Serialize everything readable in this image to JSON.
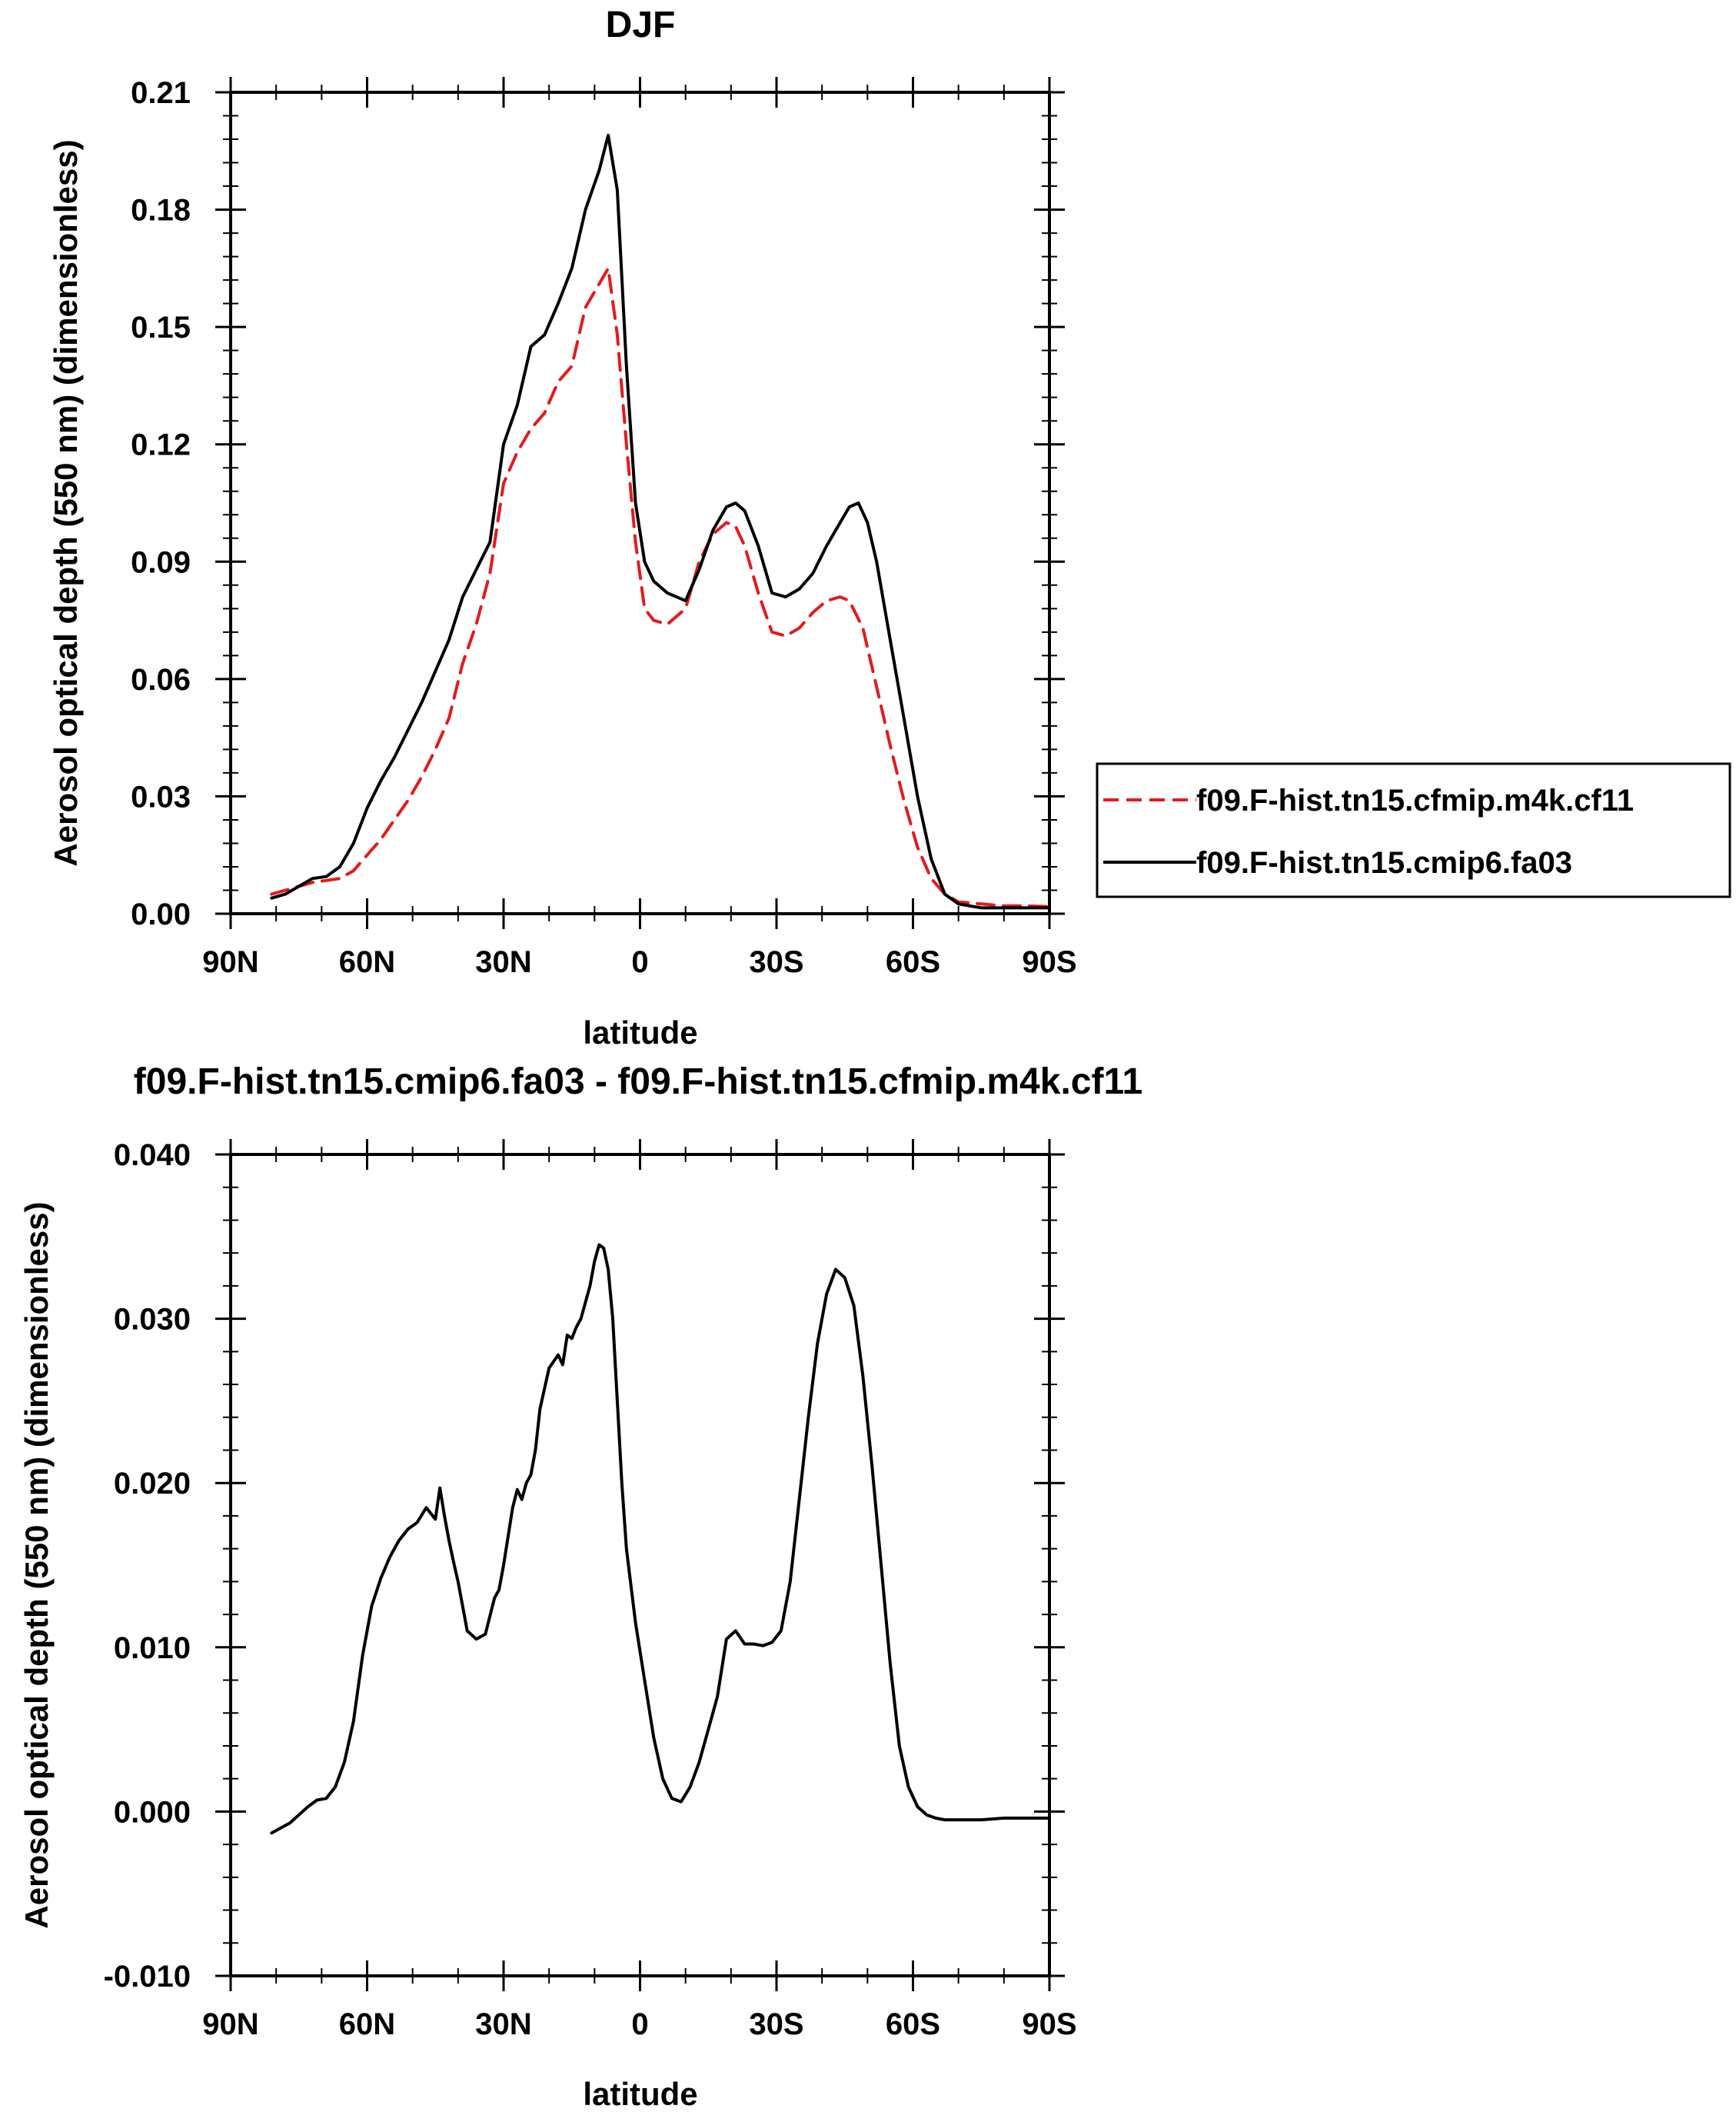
{
  "chart_data": [
    {
      "type": "line",
      "title": "DJF",
      "xlabel": "latitude",
      "ylabel": "Aerosol optical depth (550 nm) (dimensionless)",
      "xlim": [
        90,
        -90
      ],
      "ylim": [
        0,
        0.21
      ],
      "xticks": [
        90,
        60,
        30,
        0,
        -30,
        -60,
        -90
      ],
      "xtick_labels": [
        "90N",
        "60N",
        "30N",
        "0",
        "30S",
        "60S",
        "90S"
      ],
      "yticks": [
        0,
        0.03,
        0.06,
        0.09,
        0.12,
        0.15,
        0.18,
        0.21
      ],
      "ytick_labels": [
        "0.00",
        "0.03",
        "0.06",
        "0.09",
        "0.12",
        "0.15",
        "0.18",
        "0.21"
      ],
      "grid": false,
      "legend_position": "right-outside",
      "series": [
        {
          "name": "f09.F-hist.tn15.cfmip.m4k.cf11",
          "color": "#e41a1c",
          "dash": "dashed",
          "x": [
            81,
            78,
            75,
            72,
            69,
            66,
            63,
            60,
            57,
            54,
            51,
            48,
            45,
            42,
            39,
            36,
            33,
            30,
            27,
            24,
            21,
            18,
            15,
            12,
            9,
            7,
            5,
            3,
            1,
            -1,
            -3,
            -6,
            -10,
            -13,
            -16,
            -19,
            -21,
            -23,
            -26,
            -29,
            -32,
            -35,
            -38,
            -41,
            -44,
            -46,
            -49,
            -52,
            -55,
            -58,
            -61,
            -64,
            -67,
            -70,
            -75,
            -80,
            -85,
            -90
          ],
          "y": [
            0.005,
            0.006,
            0.007,
            0.008,
            0.0085,
            0.009,
            0.011,
            0.015,
            0.019,
            0.024,
            0.029,
            0.035,
            0.042,
            0.05,
            0.064,
            0.074,
            0.087,
            0.11,
            0.118,
            0.124,
            0.128,
            0.136,
            0.14,
            0.155,
            0.161,
            0.165,
            0.148,
            0.12,
            0.095,
            0.078,
            0.075,
            0.074,
            0.078,
            0.09,
            0.097,
            0.1,
            0.099,
            0.094,
            0.082,
            0.072,
            0.071,
            0.073,
            0.077,
            0.08,
            0.081,
            0.08,
            0.073,
            0.058,
            0.043,
            0.029,
            0.017,
            0.009,
            0.005,
            0.003,
            0.0025,
            0.002,
            0.002,
            0.0018
          ]
        },
        {
          "name": "f09.F-hist.tn15.cmip6.fa03",
          "color": "#000000",
          "dash": "solid",
          "x": [
            81,
            78,
            75,
            72,
            69,
            66,
            63,
            60,
            57,
            54,
            51,
            48,
            45,
            42,
            39,
            36,
            33,
            30,
            27,
            24,
            21,
            18,
            15,
            12,
            9,
            7,
            5,
            3,
            1,
            -1,
            -3,
            -6,
            -10,
            -13,
            -16,
            -19,
            -21,
            -23,
            -26,
            -29,
            -32,
            -35,
            -38,
            -41,
            -44,
            -46,
            -48,
            -50,
            -52,
            -55,
            -58,
            -61,
            -64,
            -67,
            -70,
            -75,
            -80,
            -85,
            -90
          ],
          "y": [
            0.004,
            0.005,
            0.007,
            0.009,
            0.0095,
            0.012,
            0.018,
            0.027,
            0.034,
            0.04,
            0.047,
            0.054,
            0.062,
            0.07,
            0.081,
            0.088,
            0.095,
            0.12,
            0.13,
            0.145,
            0.148,
            0.156,
            0.165,
            0.18,
            0.19,
            0.199,
            0.185,
            0.14,
            0.105,
            0.09,
            0.085,
            0.082,
            0.08,
            0.088,
            0.098,
            0.104,
            0.105,
            0.103,
            0.094,
            0.082,
            0.081,
            0.083,
            0.087,
            0.094,
            0.1,
            0.104,
            0.105,
            0.1,
            0.09,
            0.07,
            0.05,
            0.03,
            0.014,
            0.005,
            0.0025,
            0.0015,
            0.0015,
            0.0015,
            0.0015
          ]
        }
      ]
    },
    {
      "type": "line",
      "title": "f09.F-hist.tn15.cmip6.fa03 - f09.F-hist.tn15.cfmip.m4k.cf11",
      "xlabel": "latitude",
      "ylabel": "Aerosol optical depth (550 nm) (dimensionless)",
      "xlim": [
        90,
        -90
      ],
      "ylim": [
        -0.01,
        0.04
      ],
      "xticks": [
        90,
        60,
        30,
        0,
        -30,
        -60,
        -90
      ],
      "xtick_labels": [
        "90N",
        "60N",
        "30N",
        "0",
        "30S",
        "60S",
        "90S"
      ],
      "yticks": [
        -0.01,
        0,
        0.01,
        0.02,
        0.03,
        0.04
      ],
      "ytick_labels": [
        "-0.010",
        "0.000",
        "0.010",
        "0.020",
        "0.030",
        "0.040"
      ],
      "grid": false,
      "series": [
        {
          "color": "#000000",
          "dash": "solid",
          "x": [
            81,
            79,
            77,
            75,
            73,
            71,
            69,
            67,
            65,
            63,
            61,
            59,
            57,
            55,
            53,
            51,
            49,
            47,
            45,
            44,
            43,
            42,
            41,
            40,
            38,
            36,
            34,
            32,
            31,
            30,
            28,
            27,
            26,
            25,
            24,
            23,
            22,
            20,
            18,
            17,
            16,
            15,
            14,
            13,
            12,
            11,
            10,
            9,
            8,
            7,
            6,
            5,
            4,
            3,
            1,
            -1,
            -3,
            -5,
            -7,
            -9,
            -11,
            -13,
            -15,
            -17,
            -19,
            -21,
            -23,
            -25,
            -27,
            -29,
            -31,
            -33,
            -35,
            -37,
            -39,
            -41,
            -43,
            -45,
            -47,
            -49,
            -51,
            -53,
            -55,
            -57,
            -59,
            -61,
            -63,
            -65,
            -67,
            -70,
            -75,
            -80,
            -85,
            -90
          ],
          "y": [
            -0.0013,
            -0.001,
            -0.0007,
            -0.0002,
            0.0003,
            0.0007,
            0.0008,
            0.0015,
            0.003,
            0.0055,
            0.0095,
            0.0125,
            0.0142,
            0.0155,
            0.0165,
            0.0172,
            0.0176,
            0.0185,
            0.0178,
            0.0197,
            0.018,
            0.0165,
            0.0152,
            0.014,
            0.011,
            0.0105,
            0.0108,
            0.013,
            0.0135,
            0.015,
            0.0185,
            0.0196,
            0.019,
            0.02,
            0.0205,
            0.022,
            0.0245,
            0.027,
            0.0278,
            0.0272,
            0.029,
            0.0288,
            0.0295,
            0.03,
            0.031,
            0.032,
            0.0335,
            0.0345,
            0.0343,
            0.033,
            0.03,
            0.025,
            0.02,
            0.016,
            0.0115,
            0.008,
            0.0045,
            0.002,
            0.0008,
            0.0006,
            0.0015,
            0.003,
            0.005,
            0.007,
            0.0105,
            0.011,
            0.0102,
            0.0102,
            0.0101,
            0.0103,
            0.011,
            0.014,
            0.019,
            0.024,
            0.0285,
            0.0315,
            0.033,
            0.0325,
            0.0308,
            0.0265,
            0.021,
            0.015,
            0.009,
            0.004,
            0.0015,
            0.0003,
            -0.0002,
            -0.0004,
            -0.0005,
            -0.0005,
            -0.0005,
            -0.0004,
            -0.0004,
            -0.0004
          ]
        }
      ]
    }
  ]
}
